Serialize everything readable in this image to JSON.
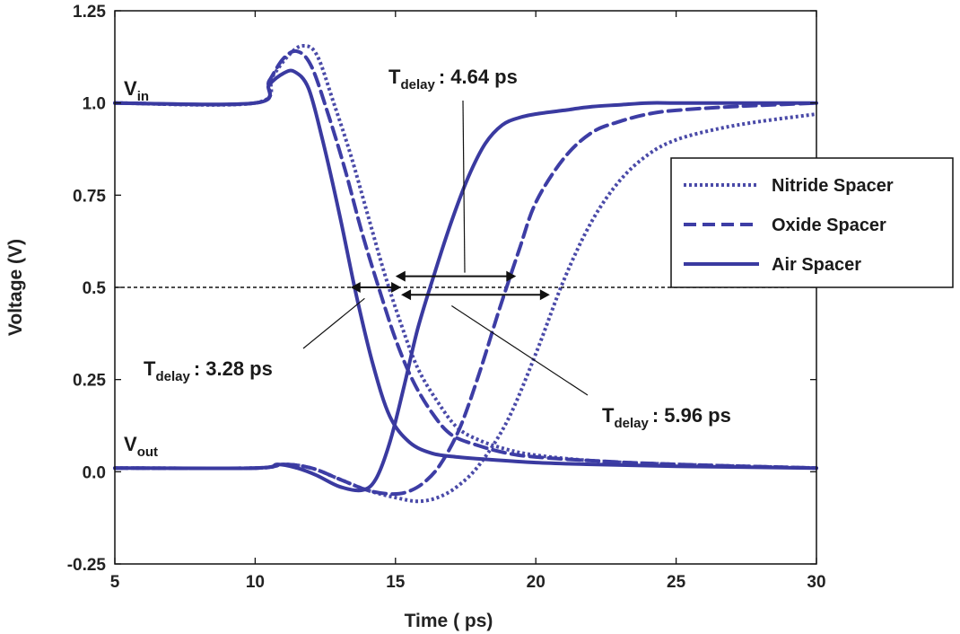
{
  "chart_data": {
    "type": "line",
    "title": "",
    "xlabel": "Time ( ps)",
    "ylabel": "Voltage (V)",
    "xlim": [
      5,
      30
    ],
    "ylim": [
      -0.25,
      1.25
    ],
    "xticks": [
      "5",
      "10",
      "15",
      "20",
      "25",
      "30"
    ],
    "yticks": [
      "-0.25",
      "0.0",
      "0.25",
      "0.5",
      "0.75",
      "1.0",
      "1.25"
    ],
    "grid": false,
    "legend_position": "right",
    "reference_line": {
      "y": 0.5,
      "style": "dashed"
    },
    "series": [
      {
        "name": "Nitride Spacer",
        "style": "dotted",
        "color": "#4a4aa8",
        "vin": {
          "x": [
            5,
            10,
            10.6,
            11.2,
            11.7,
            12.2,
            12.8,
            13.4,
            14.0,
            14.6,
            15.2,
            15.8,
            16.5,
            17.2,
            18.0,
            19.0,
            20.0,
            22.0,
            25.0,
            30.0
          ],
          "y": [
            1.0,
            1.0,
            1.07,
            1.13,
            1.155,
            1.13,
            1.0,
            0.86,
            0.7,
            0.54,
            0.4,
            0.28,
            0.19,
            0.12,
            0.085,
            0.06,
            0.045,
            0.03,
            0.02,
            0.01
          ]
        },
        "vout": {
          "x": [
            5,
            10,
            11,
            12,
            13,
            14,
            15,
            15.8,
            16.5,
            17.2,
            18.0,
            19.0,
            20.0,
            21.0,
            22.0,
            23.0,
            24.0,
            25.0,
            26.5,
            28.0,
            30.0
          ],
          "y": [
            0.01,
            0.01,
            0.02,
            0.01,
            -0.02,
            -0.05,
            -0.07,
            -0.08,
            -0.07,
            -0.04,
            0.02,
            0.14,
            0.32,
            0.52,
            0.68,
            0.79,
            0.86,
            0.9,
            0.93,
            0.95,
            0.97
          ]
        }
      },
      {
        "name": "Oxide Spacer",
        "style": "dashed",
        "color": "#3d3da5",
        "vin": {
          "x": [
            5,
            10,
            10.5,
            11.0,
            11.5,
            12.0,
            12.6,
            13.2,
            13.8,
            14.4,
            15.0,
            15.6,
            16.3,
            17.0,
            18.0,
            19.0,
            20.0,
            22.0,
            25.0,
            30.0
          ],
          "y": [
            1.0,
            1.0,
            1.06,
            1.12,
            1.14,
            1.1,
            0.97,
            0.82,
            0.65,
            0.5,
            0.36,
            0.25,
            0.16,
            0.1,
            0.07,
            0.05,
            0.04,
            0.03,
            0.02,
            0.01
          ]
        },
        "vout": {
          "x": [
            5,
            10,
            11,
            12,
            13,
            14,
            14.8,
            15.4,
            16.0,
            16.6,
            17.3,
            18.0,
            18.7,
            19.4,
            20.0,
            21.0,
            22.0,
            23.0,
            24.0,
            25.0,
            27.0,
            30.0
          ],
          "y": [
            0.01,
            0.01,
            0.02,
            0.01,
            -0.02,
            -0.05,
            -0.06,
            -0.055,
            -0.03,
            0.02,
            0.12,
            0.27,
            0.44,
            0.6,
            0.73,
            0.85,
            0.92,
            0.95,
            0.97,
            0.98,
            0.99,
            1.0
          ]
        }
      },
      {
        "name": "Air Spacer",
        "style": "solid",
        "color": "#3a3aa0",
        "vin": {
          "x": [
            5,
            10,
            10.5,
            11.0,
            11.4,
            11.9,
            12.4,
            13.0,
            13.6,
            14.2,
            14.8,
            15.5,
            16.3,
            17.2,
            18.0,
            20.0,
            22.0,
            25.0,
            30.0
          ],
          "y": [
            1.0,
            1.0,
            1.05,
            1.08,
            1.085,
            1.04,
            0.9,
            0.7,
            0.48,
            0.29,
            0.15,
            0.08,
            0.05,
            0.04,
            0.035,
            0.025,
            0.02,
            0.015,
            0.01
          ]
        },
        "vout": {
          "x": [
            5,
            10,
            10.8,
            11.5,
            12.2,
            13.0,
            13.8,
            14.3,
            14.8,
            15.3,
            15.8,
            16.4,
            17.0,
            17.6,
            18.2,
            18.8,
            19.4,
            20.0,
            21.0,
            22.0,
            23.0,
            24.0,
            25.0,
            27.0,
            30.0
          ],
          "y": [
            0.01,
            0.01,
            0.02,
            0.01,
            -0.01,
            -0.04,
            -0.05,
            -0.02,
            0.08,
            0.23,
            0.39,
            0.54,
            0.68,
            0.8,
            0.89,
            0.94,
            0.96,
            0.97,
            0.98,
            0.99,
            0.995,
            1.0,
            1.0,
            1.0,
            1.0
          ]
        }
      }
    ],
    "annotations": [
      {
        "main": "T",
        "sub": "delay",
        "value": ": 4.64  ps",
        "arrow_from": 15.0,
        "arrow_to": 19.3,
        "arrow_y": 0.53,
        "pointer": {
          "x": 17.6,
          "y": 0.53
        }
      },
      {
        "main": "T",
        "sub": "delay",
        "value": ": 3.28  ps",
        "arrow_from": 13.4,
        "arrow_to": 15.2,
        "arrow_y": 0.5,
        "pointer": {
          "x": 13.9,
          "y": 0.47
        }
      },
      {
        "main": "T",
        "sub": "delay",
        "value": ": 5.96  ps",
        "arrow_from": 15.2,
        "arrow_to": 20.5,
        "arrow_y": 0.48,
        "pointer": {
          "x": 17.0,
          "y": 0.45
        }
      }
    ],
    "curve_labels": [
      {
        "main": "V",
        "sub": "in"
      },
      {
        "main": "V",
        "sub": "out"
      }
    ]
  }
}
